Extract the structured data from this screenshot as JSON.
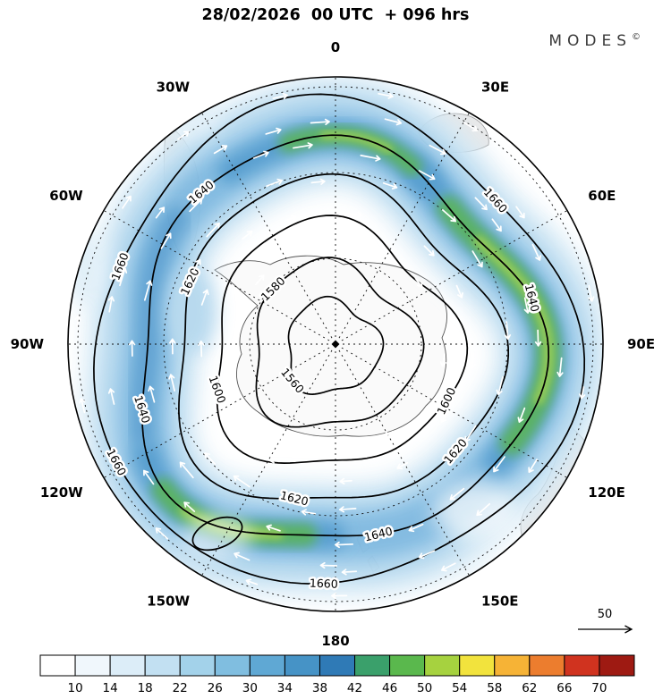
{
  "header": {
    "title": "28/02/2026  00 UTC  + 096 hrs",
    "brand": "MODES",
    "brand_mark": "©"
  },
  "map": {
    "lon_labels": [
      "0",
      "30E",
      "60E",
      "90E",
      "120E",
      "150E",
      "180",
      "150W",
      "120W",
      "90W",
      "60W",
      "30W"
    ],
    "contour_labels": [
      "1660",
      "1660",
      "1660",
      "1660",
      "1640",
      "1640",
      "1640",
      "1640",
      "1620",
      "1620",
      "1620",
      "1600",
      "1600",
      "1580",
      "1560"
    ]
  },
  "legend": {
    "reference_value": "50"
  },
  "chart_data": {
    "type": "heatmap",
    "title": "28/02/2026 00 UTC + 096 hrs",
    "brand": "MODES©",
    "projection": "south-polar-stereographic",
    "grid": "dashed-graticule-every-30deg-lon-and-3-latitude-circles",
    "longitude_ring_labels": [
      "0",
      "30E",
      "60E",
      "90E",
      "120E",
      "150E",
      "180",
      "150W",
      "120W",
      "90W",
      "60W",
      "30W"
    ],
    "contour_levels": [
      1560,
      1580,
      1600,
      1620,
      1640,
      1660
    ],
    "contour_field": "geopotential-height-contours-lowest-at-pole-increasing-outward",
    "shaded_field": "wind-speed-shading-annular-jet-band-maxima-green",
    "jet_maxima_longitudes": [
      "90E-120E",
      "180-150W",
      "0-30E"
    ],
    "wind_reference_arrow": 50,
    "colorbar": {
      "position": "bottom",
      "ticks": [
        10,
        14,
        18,
        22,
        26,
        30,
        34,
        38,
        42,
        46,
        50,
        54,
        58,
        62,
        66,
        70
      ],
      "colors": [
        "#ffffff",
        "#f0f7fc",
        "#dcedf8",
        "#c2e0f2",
        "#a3d2ea",
        "#80bee0",
        "#5fa8d4",
        "#4693c6",
        "#2f7ab6",
        "#3aa06b",
        "#5ab84d",
        "#a6d23f",
        "#f2e33d",
        "#f6b336",
        "#ec7d2e",
        "#d0331f",
        "#9e1a12"
      ]
    }
  }
}
